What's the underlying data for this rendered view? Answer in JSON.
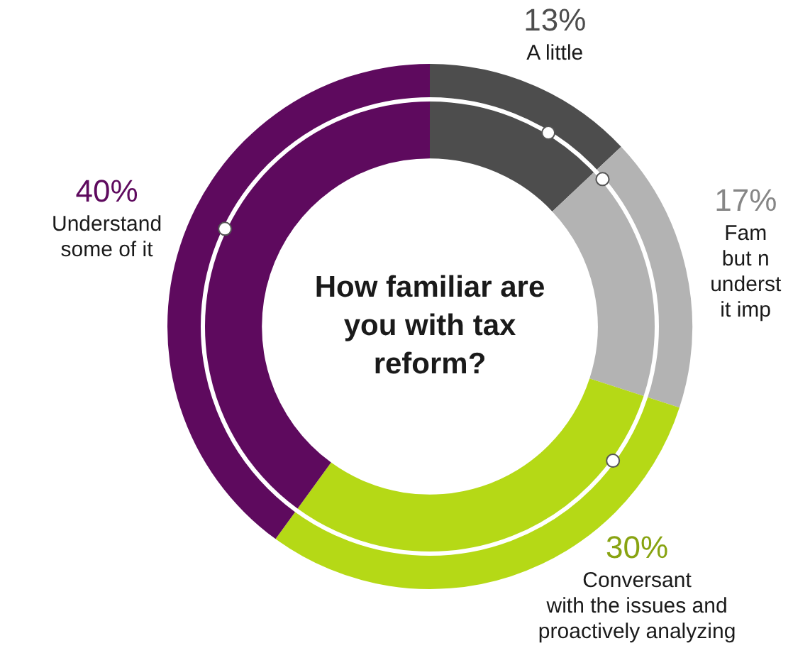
{
  "chart_data": {
    "type": "donut",
    "title": "How familiar are you with tax reform?",
    "categories": [
      "A little",
      "Fam\nbut n\nunderst\nit imp",
      "Conversant\nwith the issues and\nproactively analyzing",
      "Understand\nsome of it"
    ],
    "values": [
      13,
      17,
      30,
      40
    ],
    "value_labels": [
      "13%",
      "17%",
      "30%",
      "40%"
    ],
    "colors": [
      "#4d4d4d",
      "#b3b3b3",
      "#b5d916",
      "#5e0a5e"
    ],
    "legend": false
  }
}
